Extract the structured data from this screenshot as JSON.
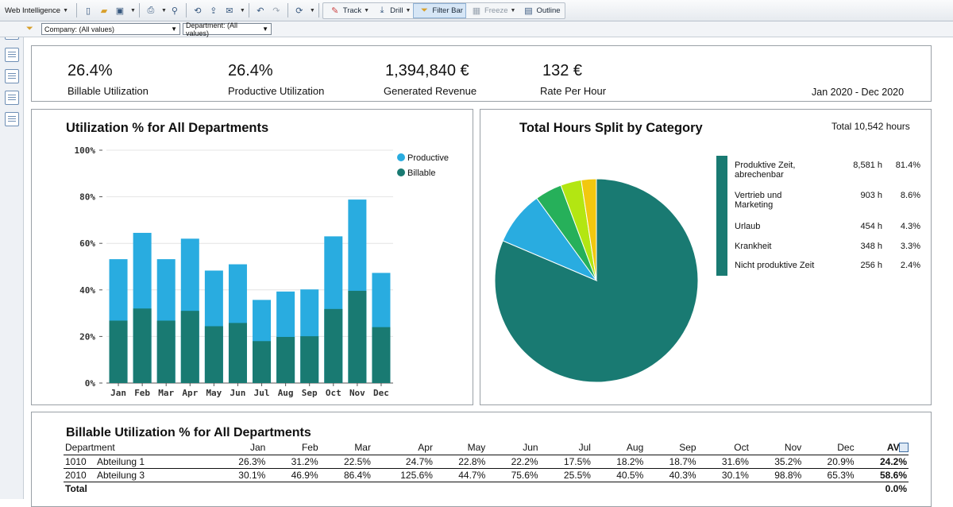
{
  "toolbar": {
    "app_name": "Web Intelligence",
    "track_label": "Track",
    "drill_label": "Drill",
    "filter_bar_label": "Filter Bar",
    "freeze_label": "Freeze",
    "outline_label": "Outline"
  },
  "filters": {
    "company": "Company: (All values)",
    "department": "Department: (All values)"
  },
  "kpis": [
    {
      "value": "26.4%",
      "label": "Billable Utilization"
    },
    {
      "value": "26.4%",
      "label": "Productive Utilization"
    },
    {
      "value": "1,394,840 €",
      "label": "Generated Revenue"
    },
    {
      "value": "132 €",
      "label": "Rate Per Hour"
    }
  ],
  "period": "Jan 2020 - Dec 2020",
  "bar_chart": {
    "title": "Utilization % for All Departments",
    "legend": [
      {
        "name": "Productive",
        "color": "#29ace0"
      },
      {
        "name": "Billable",
        "color": "#197a72"
      }
    ],
    "y_ticks": [
      "0%",
      "20%",
      "40%",
      "60%",
      "80%",
      "100%"
    ]
  },
  "pie_chart": {
    "title": "Total Hours Split by Category",
    "total": "Total 10,542 hours",
    "items": [
      {
        "label_line1": "Produktive Zeit,",
        "label_line2": "abrechenbar",
        "hours": "8,581 h",
        "pct": "81.4%"
      },
      {
        "label_line1": "Vertrieb und",
        "label_line2": "Marketing",
        "hours": "903 h",
        "pct": "8.6%"
      },
      {
        "label_line1": "Urlaub",
        "label_line2": "",
        "hours": "454 h",
        "pct": "4.3%"
      },
      {
        "label_line1": "Krankheit",
        "label_line2": "",
        "hours": "348 h",
        "pct": "3.3%"
      },
      {
        "label_line1": "Nicht produktive Zeit",
        "label_line2": "",
        "hours": "256 h",
        "pct": "2.4%"
      }
    ]
  },
  "chart_data": [
    {
      "type": "bar",
      "title": "Utilization % for All Departments",
      "categories": [
        "Jan",
        "Feb",
        "Mar",
        "Apr",
        "May",
        "Jun",
        "Jul",
        "Aug",
        "Sep",
        "Oct",
        "Nov",
        "Dec"
      ],
      "series": [
        {
          "name": "Billable",
          "values": [
            26.8,
            32,
            26.8,
            31,
            24.4,
            25.8,
            18,
            19.8,
            20.1,
            31.8,
            39.6,
            24
          ]
        },
        {
          "name": "Productive",
          "values": [
            53.2,
            64.5,
            53.2,
            62,
            48.3,
            51,
            35.7,
            39.3,
            40.2,
            63,
            78.8,
            47.3
          ]
        }
      ],
      "ylim": [
        0,
        100
      ],
      "stacked": "overlay",
      "grid": true,
      "legend": "top-right"
    },
    {
      "type": "pie",
      "title": "Total Hours Split by Category",
      "labels": [
        "Produktive Zeit, abrechenbar",
        "Vertrieb und Marketing",
        "Urlaub",
        "Krankheit",
        "Nicht produktive Zeit"
      ],
      "values": [
        81.4,
        8.6,
        4.3,
        3.3,
        2.4
      ],
      "colors": [
        "#197a72",
        "#29ace0",
        "#26b05a",
        "#b3e612",
        "#f2c80f"
      ],
      "legend": "right"
    }
  ],
  "table": {
    "title": "Billable Utilization % for All Departments",
    "headers": [
      "Department",
      "Jan",
      "Feb",
      "Mar",
      "Apr",
      "May",
      "Jun",
      "Jul",
      "Aug",
      "Sep",
      "Oct",
      "Nov",
      "Dec",
      "AVG"
    ],
    "rows": [
      {
        "code": "1010",
        "name": "Abteilung 1",
        "values": [
          "26.3%",
          "31.2%",
          "22.5%",
          "24.7%",
          "22.8%",
          "22.2%",
          "17.5%",
          "18.2%",
          "18.7%",
          "31.6%",
          "35.2%",
          "20.9%",
          "24.2%"
        ]
      },
      {
        "code": "2010",
        "name": "Abteilung 3",
        "values": [
          "30.1%",
          "46.9%",
          "86.4%",
          "125.6%",
          "44.7%",
          "75.6%",
          "25.5%",
          "40.5%",
          "40.3%",
          "30.1%",
          "98.8%",
          "65.3%",
          "58.6%"
        ]
      }
    ],
    "total_label": "Total",
    "total_avg": "0.0%"
  }
}
